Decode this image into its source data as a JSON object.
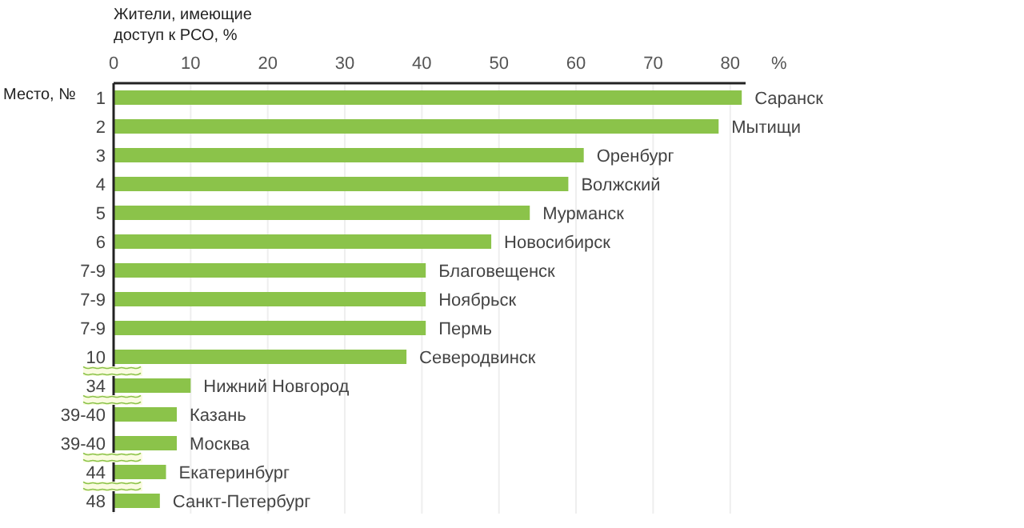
{
  "chart_data": {
    "type": "bar",
    "orientation": "horizontal",
    "xlabel": "Жители, имеющие\nдоступ к РСО, %",
    "ylabel": "Место, №",
    "categories": [
      "1",
      "2",
      "3",
      "4",
      "5",
      "6",
      "7-9",
      "7-9",
      "7-9",
      "10",
      "34",
      "39-40",
      "39-40",
      "44",
      "48"
    ],
    "values": [
      81.5,
      78.5,
      61,
      59,
      54,
      49,
      40.5,
      40.5,
      40.5,
      38,
      10,
      8.2,
      8.2,
      6.8,
      6
    ],
    "value_labels": [
      "Саранск",
      "Мытищи",
      "Оренбург",
      "Волжский",
      "Мурманск",
      "Новосибирск",
      "Благовещенск",
      "Ноябрьск",
      "Пермь",
      "Северодвинск",
      "Нижний Новгород",
      "Казань",
      "Москва",
      "Екатеринбург",
      "Санкт-Петербург"
    ],
    "color": "#8bc34a",
    "xlim": [
      0,
      82
    ],
    "xticks": [
      0,
      10,
      20,
      30,
      40,
      50,
      60,
      70,
      80
    ],
    "grid": "x",
    "annotations": [
      "%"
    ]
  }
}
